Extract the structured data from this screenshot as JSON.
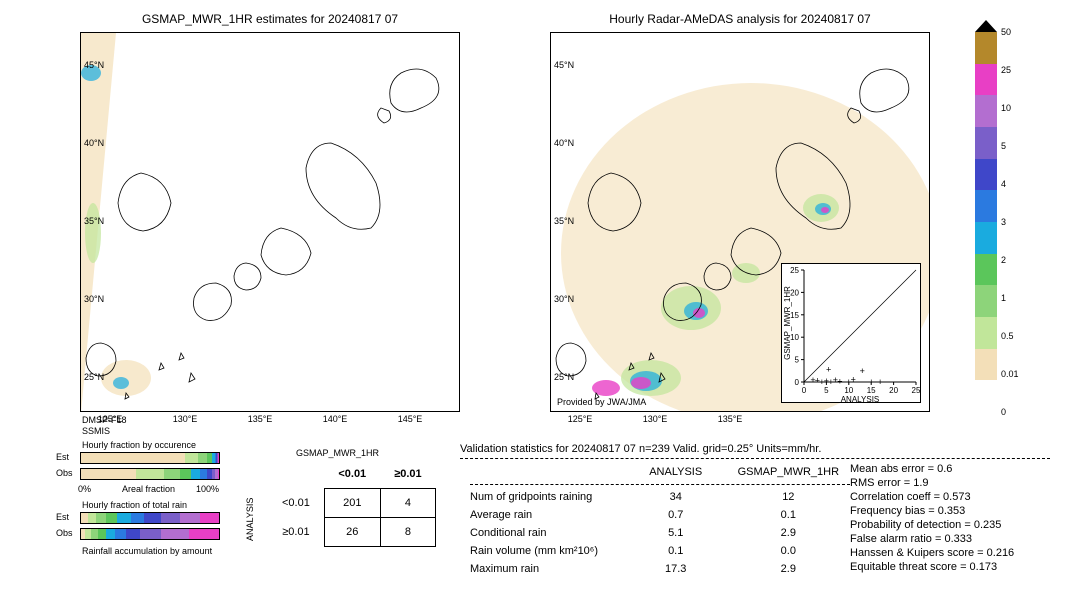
{
  "titles": {
    "left": "GSMAP_MWR_1HR estimates for 20240817 07",
    "right": "Hourly Radar-AMeDAS analysis for 20240817 07"
  },
  "maps": {
    "lon_ticks": [
      "125°E",
      "130°E",
      "135°E",
      "140°E",
      "145°E"
    ],
    "lat_ticks": [
      "25°N",
      "30°N",
      "35°N",
      "40°N",
      "45°N"
    ],
    "provider": "Provided by JWA/JMA",
    "left_footer1": "DMSP-F18",
    "left_footer2": "SSMIS"
  },
  "colorbar": {
    "ticks": [
      "0",
      "0.01",
      "0.5",
      "1",
      "2",
      "3",
      "4",
      "5",
      "10",
      "25",
      "50"
    ],
    "colors": [
      "#ffffff",
      "#f3dfb8",
      "#c1e69a",
      "#8dd47a",
      "#5bc65b",
      "#1aabdf",
      "#2b7ae0",
      "#3f47c9",
      "#7a5fc9",
      "#b36ed0",
      "#e83fc5",
      "#b4882b"
    ]
  },
  "fraction": {
    "occ_title": "Hourly fraction by occurence",
    "tot_title": "Hourly fraction of total rain",
    "acc_title": "Rainfall accumulation by amount",
    "est": "Est",
    "obs": "Obs",
    "axis0": "0%",
    "axis_mid": "Areal fraction",
    "axis100": "100%",
    "colors": [
      "#f3dfb8",
      "#c1e69a",
      "#8dd47a",
      "#5bc65b",
      "#1aabdf",
      "#2b7ae0",
      "#3f47c9",
      "#7a5fc9",
      "#b36ed0",
      "#e83fc5"
    ],
    "occ_est": [
      75,
      10,
      6,
      4,
      2,
      1,
      0.5,
      0.5,
      0.5,
      0.5
    ],
    "occ_obs": [
      40,
      20,
      12,
      8,
      6,
      5,
      4,
      2,
      2,
      1
    ],
    "tot_est": [
      5,
      6,
      7,
      8,
      10,
      10,
      12,
      14,
      14,
      14
    ],
    "tot_obs": [
      3,
      4,
      5,
      6,
      7,
      8,
      10,
      15,
      20,
      22
    ]
  },
  "cont": {
    "col_header": "GSMAP_MWR_1HR",
    "row_header": "ANALYSIS",
    "lt": "<0.01",
    "ge": "≥0.01",
    "c00": "201",
    "c01": "4",
    "c10": "26",
    "c11": "8"
  },
  "validation": {
    "header": "Validation statistics for 20240817 07  n=239 Valid. grid=0.25° Units=mm/hr.",
    "col_an": "ANALYSIS",
    "col_gs": "GSMAP_MWR_1HR",
    "rows": [
      {
        "label": "Num of gridpoints raining",
        "a": "34",
        "g": "12"
      },
      {
        "label": "Average rain",
        "a": "0.7",
        "g": "0.1"
      },
      {
        "label": "Conditional rain",
        "a": "5.1",
        "g": "2.9"
      },
      {
        "label": "Rain volume (mm km²10⁶)",
        "a": "0.1",
        "g": "0.0"
      },
      {
        "label": "Maximum rain",
        "a": "17.3",
        "g": "2.9"
      }
    ],
    "right": [
      "Mean abs error =    0.6",
      "RMS error =    1.9",
      "Correlation coeff =  0.573",
      "Frequency bias =  0.353",
      "Probability of detection =  0.235",
      "False alarm ratio =  0.333",
      "Hanssen & Kuipers score =  0.216",
      "Equitable threat score =  0.173"
    ]
  },
  "scatter": {
    "x": "ANALYSIS",
    "y": "GSMAP_MWR_1HR",
    "lim": 25,
    "ticks": [
      0,
      5,
      10,
      15,
      20,
      25
    ],
    "points": [
      [
        2,
        0.5
      ],
      [
        3,
        0.3
      ],
      [
        4,
        0
      ],
      [
        5,
        0.2
      ],
      [
        5.5,
        2.8
      ],
      [
        6,
        0
      ],
      [
        7,
        0.4
      ],
      [
        8,
        0.1
      ],
      [
        10,
        0
      ],
      [
        11,
        0.6
      ],
      [
        13,
        2.5
      ],
      [
        15,
        0
      ],
      [
        17,
        0
      ]
    ]
  }
}
